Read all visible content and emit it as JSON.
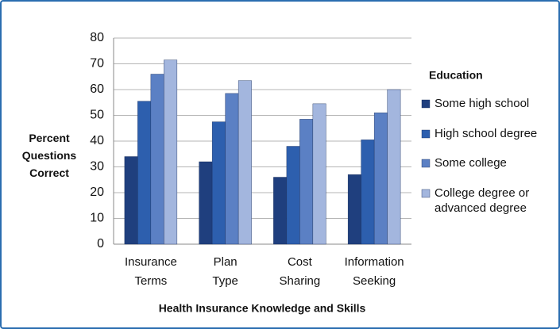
{
  "chart_data": {
    "type": "bar",
    "categories": [
      "Insurance Terms",
      "Plan Type",
      "Cost Sharing",
      "Information Seeking"
    ],
    "series": [
      {
        "name": "Some high school",
        "color": "#1f3f7e",
        "values": [
          34,
          32,
          26,
          27
        ]
      },
      {
        "name": "High school degree",
        "color": "#2d5fae",
        "values": [
          55.5,
          47.5,
          38,
          40.5
        ]
      },
      {
        "name": "Some college",
        "color": "#5b80c4",
        "values": [
          66,
          58.5,
          48.5,
          51
        ]
      },
      {
        "name": "College degree or advanced degree",
        "color": "#a3b6de",
        "values": [
          71.5,
          63.5,
          54.5,
          60
        ]
      }
    ],
    "ylim": [
      0,
      80
    ],
    "yticks": [
      0,
      10,
      20,
      30,
      40,
      50,
      60,
      70,
      80
    ],
    "grid": true,
    "y_label": "Percent Questions Correct",
    "x_label": "Health Insurance Knowledge and Skills",
    "legend_title": "Education",
    "legend_position": "right"
  }
}
